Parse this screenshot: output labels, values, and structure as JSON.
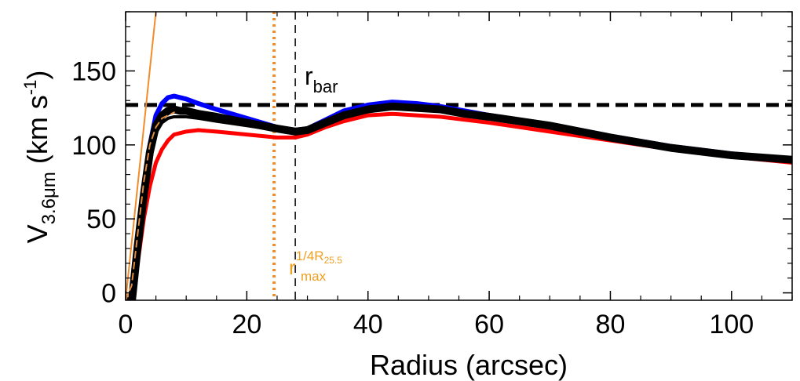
{
  "chart_data": {
    "type": "line",
    "title": "",
    "xlabel": "Radius (arcsec)",
    "ylabel": {
      "main": "V",
      "sub": "3.6μm",
      "unit_open": " (km s",
      "unit_sup": "-1",
      "unit_close": ")"
    },
    "xlim": [
      0,
      110
    ],
    "ylim": [
      -5,
      190
    ],
    "x_ticks": [
      0,
      20,
      40,
      60,
      80,
      100
    ],
    "y_ticks": [
      0,
      50,
      100,
      150
    ],
    "grid": false,
    "legend": "none",
    "series": [
      {
        "color": "#ff0000",
        "x": [
          0,
          0.5,
          1,
          2,
          3,
          4,
          5,
          6,
          7,
          8,
          10,
          12,
          15,
          20,
          25,
          28,
          30,
          33,
          36,
          40,
          44,
          48,
          52,
          56,
          60,
          70,
          80,
          90,
          100,
          110
        ],
        "y": [
          -5,
          -7,
          -7,
          20,
          50,
          72,
          88,
          97,
          103,
          107,
          109,
          110,
          109,
          107,
          105,
          105,
          107,
          112,
          116,
          120,
          121,
          120,
          119,
          117,
          115,
          109,
          103,
          97,
          92,
          88
        ]
      },
      {
        "color": "#0000ff",
        "x": [
          0,
          0.5,
          1,
          2,
          3,
          4,
          5,
          6,
          7,
          8,
          9,
          10,
          12,
          15,
          20,
          25,
          28,
          30,
          33,
          36,
          40,
          44,
          48,
          52,
          56,
          60,
          70,
          80,
          90,
          100,
          110
        ],
        "y": [
          -5,
          -7,
          -7,
          35,
          70,
          100,
          120,
          128,
          132,
          133,
          132,
          131,
          128,
          124,
          118,
          112,
          110,
          111,
          117,
          123,
          127,
          129,
          128,
          126,
          123,
          120,
          114,
          106,
          99,
          94,
          90
        ]
      },
      {
        "color": "#000000",
        "x": [
          0,
          0.5,
          1,
          2,
          3,
          4,
          5,
          6,
          7,
          8,
          9,
          10,
          12,
          15,
          20,
          25,
          28,
          30,
          33,
          36,
          40,
          44,
          48,
          52,
          56,
          60,
          70,
          80,
          90,
          100,
          110
        ],
        "y": [
          -5,
          -7,
          -7,
          32,
          66,
          95,
          113,
          120,
          123,
          124,
          123,
          123,
          121,
          119,
          115,
          111,
          109,
          110,
          115,
          120,
          124,
          126,
          125,
          124,
          121,
          119,
          113,
          105,
          98,
          93,
          90
        ]
      },
      {
        "color": "#000000",
        "x": [
          0,
          1,
          2,
          3,
          4,
          5,
          6,
          7,
          8,
          9,
          10,
          12,
          15,
          20,
          25,
          28
        ],
        "y": [
          -5,
          -5,
          28,
          62,
          90,
          108,
          115,
          118,
          119,
          119,
          119,
          118,
          116,
          113,
          110,
          108
        ]
      },
      {
        "color": "#e08a3a",
        "x": [
          0,
          1,
          2,
          3,
          4,
          5,
          6,
          7,
          8
        ],
        "y": [
          -5,
          5,
          40,
          75,
          100,
          112,
          118,
          120,
          122
        ]
      }
    ],
    "model_line": {
      "color": "#f28c28",
      "x": [
        0,
        5
      ],
      "y": [
        -5,
        190
      ]
    },
    "hlines": [
      {
        "y": 127,
        "color": "#000000",
        "style": "dashed"
      }
    ],
    "vlines": [
      {
        "x": 28,
        "color": "#000000",
        "style": "dashed"
      },
      {
        "x": 24.5,
        "color": "#f28c28",
        "style": "dotted"
      }
    ],
    "annotations": {
      "rbar": {
        "base": "r",
        "sub": "bar",
        "color": "#000000"
      },
      "rmax": {
        "base": "r",
        "sub": "max",
        "sup": "1/4R",
        "sup_sub": "25.5",
        "color": "#f0a020"
      }
    }
  }
}
